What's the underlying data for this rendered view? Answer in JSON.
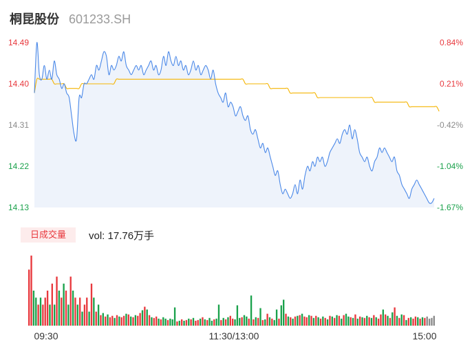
{
  "header": {
    "name": "桐昆股份",
    "code": "601233.SH"
  },
  "volume_panel": {
    "tag": "日成交量",
    "value_text": "vol: 17.76万手"
  },
  "colors": {
    "price_line": "#4a88e8",
    "avg_line": "#f5b400",
    "up": "#e8383d",
    "down": "#1aa14b",
    "neutral": "#8a8a8a",
    "area": "#eef3fb"
  },
  "chart_data": [
    {
      "type": "line",
      "title": "",
      "xlabel": "",
      "ylabel": "",
      "ylim": [
        14.13,
        14.49
      ],
      "y_ticks": [
        {
          "label": "14.49",
          "value": 14.49,
          "pct": "0.84%",
          "color": "up"
        },
        {
          "label": "14.40",
          "value": 14.4,
          "pct": "0.21%",
          "color": "up"
        },
        {
          "label": "14.31",
          "value": 14.31,
          "pct": "-0.42%",
          "color": "neutral"
        },
        {
          "label": "14.22",
          "value": 14.22,
          "pct": "-1.04%",
          "color": "down"
        },
        {
          "label": "14.13",
          "value": 14.13,
          "pct": "-1.67%",
          "color": "down"
        }
      ],
      "x_ticks": [
        "09:30",
        "11:30/13:00",
        "15:00"
      ],
      "series": [
        {
          "values": [
            14.38,
            14.49,
            14.42,
            14.41,
            14.44,
            14.41,
            14.43,
            14.41,
            14.45,
            14.42,
            14.41,
            14.39,
            14.4,
            14.38,
            14.37,
            14.33,
            14.29,
            14.28,
            14.37,
            14.37,
            14.4,
            14.4,
            14.41,
            14.42,
            14.41,
            14.44,
            14.43,
            14.45,
            14.47,
            14.46,
            14.42,
            14.44,
            14.43,
            14.44,
            14.46,
            14.45,
            14.47,
            14.44,
            14.43,
            14.42,
            14.43,
            14.44,
            14.43,
            14.44,
            14.42,
            14.43,
            14.44,
            14.45,
            14.43,
            14.44,
            14.42,
            14.43,
            14.46,
            14.44,
            14.47,
            14.45,
            14.44,
            14.46,
            14.44,
            14.45,
            14.43,
            14.44,
            14.42,
            14.43,
            14.45,
            14.43,
            14.44,
            14.42,
            14.43,
            14.44,
            14.43,
            14.41,
            14.43,
            14.4,
            14.38,
            14.37,
            14.36,
            14.38,
            14.35,
            14.36,
            14.35,
            14.33,
            14.34,
            14.35,
            14.33,
            14.32,
            14.33,
            14.3,
            14.29,
            14.3,
            14.28,
            14.26,
            14.27,
            14.25,
            14.26,
            14.24,
            14.22,
            14.2,
            14.21,
            14.18,
            14.16,
            14.17,
            14.16,
            14.15,
            14.16,
            14.18,
            14.16,
            14.19,
            14.17,
            14.2,
            14.22,
            14.21,
            14.23,
            14.22,
            14.24,
            14.23,
            14.24,
            14.22,
            14.23,
            14.25,
            14.26,
            14.27,
            14.28,
            14.27,
            14.29,
            14.3,
            14.29,
            14.31,
            14.28,
            14.3,
            14.28,
            14.25,
            14.24,
            14.23,
            14.24,
            14.22,
            14.21,
            14.23,
            14.24,
            14.26,
            14.25,
            14.26,
            14.25,
            14.24,
            14.23,
            14.24,
            14.21,
            14.2,
            14.18,
            14.17,
            14.16,
            14.15,
            14.17,
            14.18,
            14.19,
            14.18,
            14.17,
            14.16,
            14.15,
            14.14,
            14.14,
            14.15
          ],
          "color": "price_line"
        },
        {
          "values": [
            14.38,
            14.41,
            14.41,
            14.41,
            14.41,
            14.41,
            14.41,
            14.41,
            14.4,
            14.4,
            14.4,
            14.4,
            14.4,
            14.39,
            14.39,
            14.39,
            14.39,
            14.39,
            14.39,
            14.4,
            14.4,
            14.4,
            14.4,
            14.4,
            14.4,
            14.4,
            14.4,
            14.4,
            14.4,
            14.4,
            14.4,
            14.4,
            14.4,
            14.41,
            14.41,
            14.41,
            14.41,
            14.41,
            14.41,
            14.41,
            14.41,
            14.41,
            14.41,
            14.41,
            14.41,
            14.41,
            14.41,
            14.41,
            14.41,
            14.41,
            14.41,
            14.41,
            14.41,
            14.41,
            14.41,
            14.41,
            14.41,
            14.41,
            14.41,
            14.41,
            14.41,
            14.41,
            14.41,
            14.41,
            14.41,
            14.41,
            14.41,
            14.41,
            14.41,
            14.41,
            14.41,
            14.41,
            14.41,
            14.41,
            14.41,
            14.41,
            14.41,
            14.41,
            14.41,
            14.41,
            14.41,
            14.41,
            14.41,
            14.41,
            14.41,
            14.4,
            14.4,
            14.4,
            14.4,
            14.4,
            14.4,
            14.4,
            14.4,
            14.4,
            14.4,
            14.39,
            14.39,
            14.39,
            14.39,
            14.39,
            14.39,
            14.39,
            14.39,
            14.38,
            14.38,
            14.38,
            14.38,
            14.38,
            14.38,
            14.38,
            14.38,
            14.38,
            14.38,
            14.38,
            14.37,
            14.37,
            14.37,
            14.37,
            14.37,
            14.37,
            14.37,
            14.37,
            14.37,
            14.37,
            14.37,
            14.37,
            14.37,
            14.37,
            14.37,
            14.37,
            14.37,
            14.37,
            14.37,
            14.37,
            14.37,
            14.37,
            14.37,
            14.36,
            14.36,
            14.36,
            14.36,
            14.36,
            14.36,
            14.36,
            14.36,
            14.36,
            14.36,
            14.36,
            14.36,
            14.36,
            14.36,
            14.35,
            14.35,
            14.35,
            14.35,
            14.35,
            14.35,
            14.35,
            14.35,
            14.35,
            14.35,
            14.35,
            14.35,
            14.34
          ],
          "color": "avg_line"
        }
      ]
    },
    {
      "type": "bar",
      "title": "",
      "series": [
        {
          "values": [
            8,
            10,
            5,
            4,
            3,
            4,
            3,
            4,
            5,
            3,
            6,
            3,
            7,
            5,
            4,
            6,
            5,
            3,
            7,
            5,
            4,
            3,
            4,
            2,
            3,
            4,
            2,
            6,
            4,
            2,
            3,
            1.5,
            1.8,
            1.3,
            1.6,
            1.2,
            1.4,
            1.1,
            1.5,
            1.3,
            1.2,
            1.4,
            1.7,
            1.6,
            1.3,
            1.2,
            1.5,
            1.4,
            1.8,
            2.2,
            2.7,
            2.3,
            1.5,
            1.2,
            1.1,
            1.3,
            1.0,
            0.9,
            1.2,
            1.0,
            0.8,
            1.0,
            0.9,
            2.6,
            0.6,
            0.7,
            0.9,
            0.7,
            0.8,
            1.0,
            0.9,
            1.1,
            0.7,
            0.8,
            1.0,
            1.2,
            0.9,
            0.8,
            1.1,
            0.7,
            0.9,
            1.0,
            3.0,
            0.8,
            1.1,
            0.9,
            1.2,
            1.4,
            1.0,
            0.9,
            2.9,
            1.1,
            1.2,
            1.5,
            1.3,
            1.0,
            4.3,
            0.9,
            1.2,
            1.1,
            2.5,
            0.8,
            0.9,
            1.7,
            1.2,
            1.0,
            0.8,
            2.3,
            1.0,
            2.9,
            3.7,
            1.7,
            1.3,
            1.2,
            1.0,
            1.3,
            1.4,
            1.5,
            1.7,
            1.3,
            1.2,
            1.5,
            1.4,
            1.1,
            1.4,
            1.2,
            1.0,
            1.3,
            1.1,
            0.9,
            1.4,
            1.3,
            1.1,
            1.5,
            1.4,
            1.0,
            1.5,
            1.7,
            1.3,
            1.2,
            1.1,
            1.6,
            1.0,
            1.3,
            1.2,
            1.1,
            1.4,
            1.2,
            1.1,
            1.5,
            1.2,
            1.0,
            1.6,
            2.3,
            1.6,
            1.4,
            1.1,
            1.9,
            2.6,
            1.4,
            1.1,
            1.6,
            1.5,
            0.8,
            1.1,
            1.2,
            1.0,
            1.3,
            1.2,
            1.0,
            1.2,
            1.1,
            1.3,
            1.0,
            1.1,
            1.4
          ],
          "colors": [
            "up",
            "up",
            "down",
            "down",
            "up",
            "down",
            "up",
            "up",
            "up",
            "down",
            "up",
            "down",
            "up",
            "down",
            "up",
            "down",
            "up",
            "down",
            "up",
            "down",
            "up",
            "down",
            "up",
            "down",
            "up",
            "up",
            "down",
            "up",
            "down",
            "up",
            "down",
            "up",
            "down",
            "up",
            "down",
            "up",
            "up",
            "down",
            "up",
            "down",
            "up",
            "up",
            "down",
            "up",
            "down",
            "up",
            "down",
            "up",
            "up",
            "down",
            "up",
            "down",
            "up",
            "down",
            "up",
            "up",
            "down",
            "up",
            "down",
            "down",
            "up",
            "down",
            "down",
            "down",
            "up",
            "down",
            "up",
            "down",
            "up",
            "down",
            "up",
            "down",
            "up",
            "up",
            "down",
            "up",
            "down",
            "up",
            "down",
            "down",
            "up",
            "down",
            "down",
            "up",
            "down",
            "up",
            "down",
            "up",
            "up",
            "down",
            "down",
            "down",
            "up",
            "down",
            "down",
            "up",
            "down",
            "up",
            "down",
            "up",
            "down",
            "up",
            "down",
            "up",
            "down",
            "up",
            "down",
            "down",
            "up",
            "down",
            "down",
            "up",
            "down",
            "up",
            "down",
            "up",
            "down",
            "up",
            "down",
            "up",
            "up",
            "down",
            "up",
            "down",
            "up",
            "down",
            "up",
            "down",
            "up",
            "down",
            "up",
            "down",
            "up",
            "down",
            "up",
            "down",
            "up",
            "down",
            "down",
            "up",
            "down",
            "up",
            "down",
            "up",
            "down",
            "up",
            "down",
            "up",
            "down",
            "up",
            "down",
            "up",
            "up",
            "down",
            "up",
            "down",
            "up",
            "down",
            "up",
            "down",
            "up",
            "down",
            "up",
            "down",
            "up",
            "down",
            "up",
            "up",
            "down",
            "up",
            "down",
            "up"
          ]
        }
      ]
    }
  ]
}
